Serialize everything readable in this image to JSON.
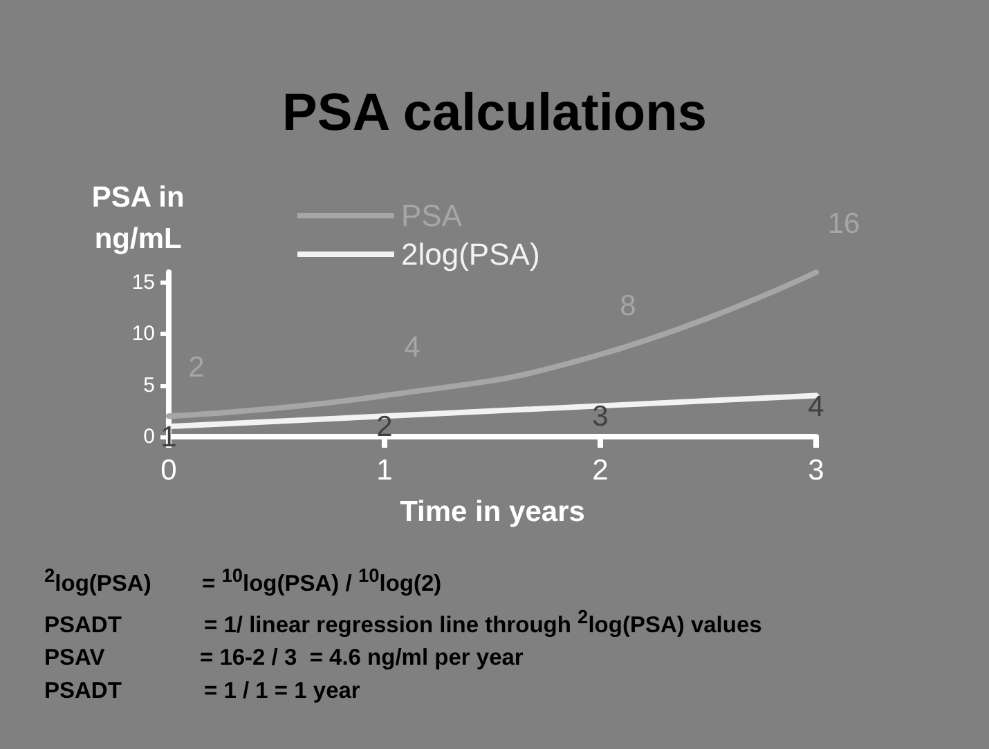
{
  "chart_data": {
    "type": "line",
    "title": "PSA calculations",
    "xlabel": "Time in years",
    "ylabel": "PSA in\nng/mL",
    "x": [
      0,
      1,
      2,
      3
    ],
    "xlim": [
      0,
      3
    ],
    "xticks": [
      0,
      1,
      2,
      3
    ],
    "ylim": [
      0,
      16
    ],
    "yticks": [
      0,
      5,
      10,
      15
    ],
    "series": [
      {
        "name": "PSA",
        "color": "#a6a6a6",
        "values": [
          2,
          4,
          8,
          16
        ]
      },
      {
        "name": "2log(PSA)",
        "color": "#f2f2f2",
        "values": [
          1,
          2,
          3,
          4
        ]
      }
    ],
    "data_labels": true,
    "legend": "top",
    "grid": false,
    "marker": "none",
    "annotations": [
      "$^{2}$log(PSA)        = $^{10}$log(PSA) / $^{10}$log(2)",
      "PSADT             = 1/ linear regression line through $^{2}$log(PSA) values",
      "PSAV               = 16-2 / 3  = 4.6 ng/ml per year",
      "PSADT             = 1 / 1 = 1 year"
    ]
  }
}
